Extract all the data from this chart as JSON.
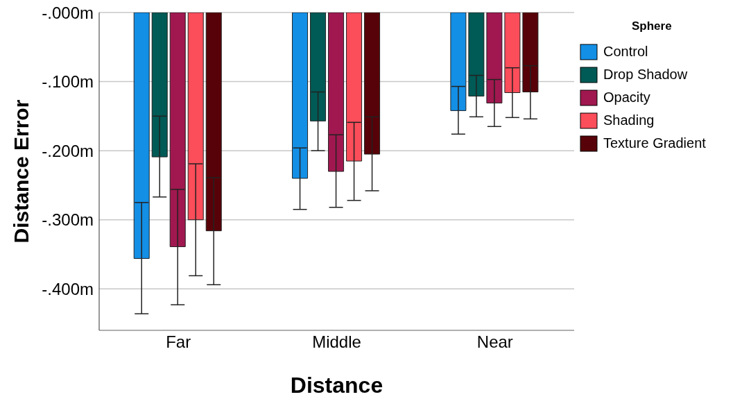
{
  "chart_data": {
    "type": "bar",
    "xlabel": "Distance",
    "ylabel": "Distance Error",
    "legend_title": "Sphere",
    "categories": [
      "Far",
      "Middle",
      "Near"
    ],
    "series": [
      {
        "name": "Control",
        "color": "#138fe6",
        "values": [
          -0.356,
          -0.24,
          -0.142
        ],
        "errors": [
          [
            -0.436,
            -0.275
          ],
          [
            -0.285,
            -0.196
          ],
          [
            -0.176,
            -0.107
          ]
        ]
      },
      {
        "name": "Drop Shadow",
        "color": "#005a55",
        "values": [
          -0.209,
          -0.157,
          -0.121
        ],
        "errors": [
          [
            -0.267,
            -0.15
          ],
          [
            -0.2,
            -0.115
          ],
          [
            -0.151,
            -0.091
          ]
        ]
      },
      {
        "name": "Opacity",
        "color": "#a0184f",
        "values": [
          -0.339,
          -0.23,
          -0.131
        ],
        "errors": [
          [
            -0.423,
            -0.256
          ],
          [
            -0.282,
            -0.177
          ],
          [
            -0.165,
            -0.097
          ]
        ]
      },
      {
        "name": "Shading",
        "color": "#fb4d5a",
        "values": [
          -0.3,
          -0.215,
          -0.116
        ],
        "errors": [
          [
            -0.381,
            -0.219
          ],
          [
            -0.272,
            -0.159
          ],
          [
            -0.152,
            -0.08
          ]
        ]
      },
      {
        "name": "Texture Gradient",
        "color": "#570208",
        "values": [
          -0.316,
          -0.205,
          -0.115
        ],
        "errors": [
          [
            -0.394,
            -0.239
          ],
          [
            -0.258,
            -0.151
          ],
          [
            -0.154,
            -0.077
          ]
        ]
      }
    ],
    "ylim": [
      -0.46,
      0
    ],
    "yticks": [
      {
        "value": 0,
        "label": "-.000m"
      },
      {
        "value": -0.1,
        "label": "-.100m"
      },
      {
        "value": -0.2,
        "label": "-.200m"
      },
      {
        "value": -0.3,
        "label": "-.300m"
      },
      {
        "value": -0.4,
        "label": "-.400m"
      }
    ],
    "grid": "y",
    "legend": "right"
  }
}
